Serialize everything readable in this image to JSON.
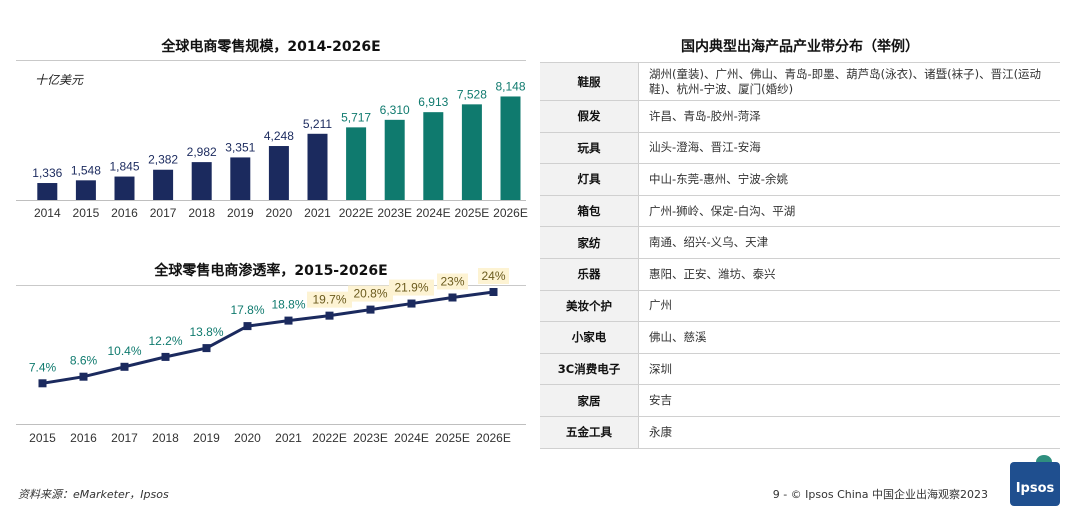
{
  "chart_data": [
    {
      "type": "bar",
      "title": "全球电商零售规模，2014-2026E",
      "ylabel": "十亿美元",
      "categories": [
        "2014",
        "2015",
        "2016",
        "2017",
        "2018",
        "2019",
        "2020",
        "2021",
        "2022E",
        "2023E",
        "2024E",
        "2025E",
        "2026E"
      ],
      "values": [
        1336,
        1548,
        1845,
        2382,
        2982,
        3351,
        4248,
        5211,
        5717,
        6310,
        6913,
        7528,
        8148
      ],
      "value_labels": [
        "1,336",
        "1,548",
        "1,845",
        "2,382",
        "2,982",
        "3,351",
        "4,248",
        "5,211",
        "5,717",
        "6,310",
        "6,913",
        "7,528",
        "8,148"
      ],
      "ylim": [
        0,
        8500
      ],
      "grid": false,
      "colors": {
        "actual": "#1b2a5e",
        "estimate": "#0f7a6e"
      }
    },
    {
      "type": "line",
      "title": "全球零售电商渗透率，2015-2026E",
      "categories": [
        "2015",
        "2016",
        "2017",
        "2018",
        "2019",
        "2020",
        "2021",
        "2022E",
        "2023E",
        "2024E",
        "2025E",
        "2026E"
      ],
      "values": [
        7.4,
        8.6,
        10.4,
        12.2,
        13.8,
        17.8,
        18.8,
        19.7,
        20.8,
        21.9,
        23,
        24
      ],
      "value_labels": [
        "7.4%",
        "8.6%",
        "10.4%",
        "12.2%",
        "13.8%",
        "17.8%",
        "18.8%",
        "19.7%",
        "20.8%",
        "21.9%",
        "23%",
        "24%"
      ],
      "ylim": [
        0,
        26
      ],
      "grid": false,
      "colors": {
        "line": "#1b2a5e",
        "label_actual": "#0f7a6e",
        "label_estimate": "#6b5b1e",
        "label_highlight": "#fdf3d3"
      }
    }
  ],
  "table": {
    "title": "国内典型出海产品产业带分布（举例）",
    "rows": [
      {
        "category": "鞋服",
        "locations": "湖州(童装)、广州、佛山、青岛-即墨、葫芦岛(泳衣)、诸暨(袜子)、晋江(运动鞋)、杭州-宁波、厦门(婚纱)"
      },
      {
        "category": "假发",
        "locations": "许昌、青岛-胶州-菏泽"
      },
      {
        "category": "玩具",
        "locations": "汕头-澄海、晋江-安海"
      },
      {
        "category": "灯具",
        "locations": "中山-东莞-惠州、宁波-余姚"
      },
      {
        "category": "箱包",
        "locations": "广州-狮岭、保定-白沟、平湖"
      },
      {
        "category": "家纺",
        "locations": "南通、绍兴-义乌、天津"
      },
      {
        "category": "乐器",
        "locations": "惠阳、正安、潍坊、泰兴"
      },
      {
        "category": "美妆个护",
        "locations": "广州"
      },
      {
        "category": "小家电",
        "locations": "佛山、慈溪"
      },
      {
        "category": "3C消费电子",
        "locations": "深圳"
      },
      {
        "category": "家居",
        "locations": "安吉"
      },
      {
        "category": "五金工具",
        "locations": "永康"
      }
    ]
  },
  "footer": {
    "source": "资料来源：eMarketer，Ipsos",
    "page": "9 - © Ipsos China 中国企业出海观察2023"
  },
  "logo": {
    "text": "Ipsos"
  }
}
